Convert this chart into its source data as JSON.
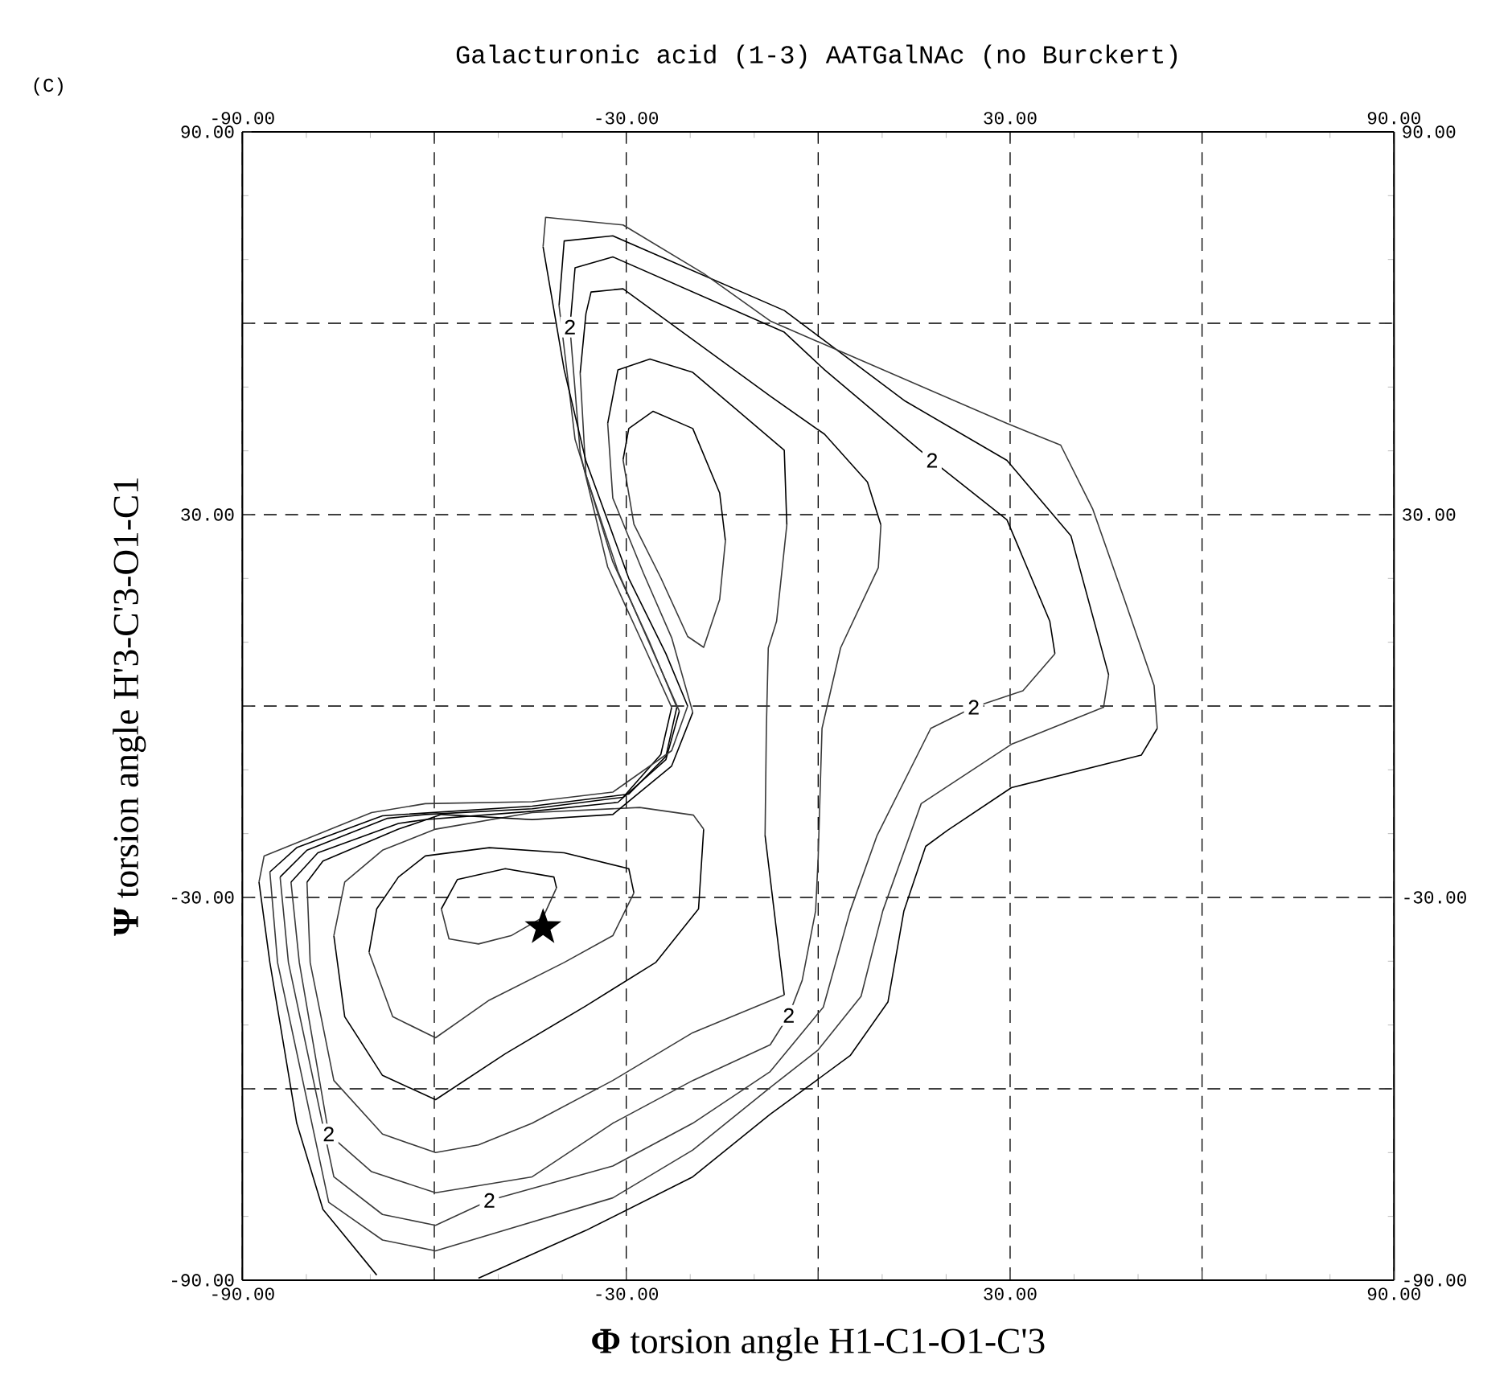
{
  "chart_data": {
    "type": "line",
    "title": "Galacturonic acid (1-3) AATGalNAc (no Burckert)",
    "xlabel": "**Φ** torsion angle H1-C1-O1-C'3",
    "ylabel": "**Ψ** torsion angle H'3-C'3-O1-C1",
    "xlim": [
      -90,
      90
    ],
    "ylim": [
      -90,
      90
    ],
    "x2lim": [
      -90,
      90
    ],
    "y2lim": [
      -90,
      90
    ],
    "xticks": [
      {
        "value": -90,
        "label": "-90.00"
      },
      {
        "value": -60,
        "label": null
      },
      {
        "value": -30,
        "label": "-30.00"
      },
      {
        "value": 0,
        "label": null
      },
      {
        "value": 30,
        "label": "30.00"
      },
      {
        "value": 60,
        "label": null
      },
      {
        "value": 90,
        "label": "90.00"
      }
    ],
    "yticks": [
      {
        "value": -90,
        "label": "-90.00"
      },
      {
        "value": -60,
        "label": null
      },
      {
        "value": -30,
        "label": "-30.00"
      },
      {
        "value": 0,
        "label": null
      },
      {
        "value": 30,
        "label": "30.00"
      },
      {
        "value": 60,
        "label": null
      },
      {
        "value": 90,
        "label": "90.00"
      }
    ],
    "x2ticks": [
      {
        "value": -90,
        "label": "-90.00"
      },
      {
        "value": -60,
        "label": null
      },
      {
        "value": -30,
        "label": "-30.00"
      },
      {
        "value": 0,
        "label": null
      },
      {
        "value": 30,
        "label": "30.00"
      },
      {
        "value": 60,
        "label": null
      },
      {
        "value": 90,
        "label": "90.00"
      }
    ],
    "y2ticks": [
      {
        "value": -90,
        "label": "-90.00"
      },
      {
        "value": -60,
        "label": null
      },
      {
        "value": -30,
        "label": "-30.00"
      },
      {
        "value": 0,
        "label": null
      },
      {
        "value": 30,
        "label": "30.00"
      },
      {
        "value": 60,
        "label": null
      },
      {
        "value": 90,
        "label": "90.00"
      }
    ],
    "grid": true,
    "marker": "none",
    "series": [
      {
        "color": "#000000",
        "x": [
          -40.9,
          -41.3,
          -48.9,
          -56.4,
          -58.9
        ],
        "values": [
          -28.5,
          -26.8,
          -25.5,
          -27.2,
          -31.8
        ]
      },
      {
        "color": "#3a3a3a",
        "x": [
          -58.9,
          -57.7,
          -53.1,
          -48.0,
          -43.0,
          -40.9
        ],
        "values": [
          -31.8,
          -36.5,
          -37.3,
          -36.0,
          -33.1,
          -28.5
        ]
      },
      {
        "color": "#000000",
        "x": [
          -70.2,
          -69.0,
          -65.6,
          -61.4,
          -51.4,
          -39.7,
          -29.6,
          -28.8
        ],
        "values": [
          -38.6,
          -31.8,
          -26.8,
          -23.5,
          -22.2,
          -23.0,
          -25.5,
          -29.3
        ]
      },
      {
        "color": "#3a3a3a",
        "x": [
          -28.8,
          -32.1,
          -39.7,
          -51.4,
          -59.8,
          -66.5,
          -70.2
        ],
        "values": [
          -29.3,
          -36.0,
          -40.2,
          -46.1,
          -52.0,
          -48.7,
          -38.6
        ]
      },
      {
        "color": "#000000",
        "x": [
          -17.9,
          -18.7,
          -25.4,
          -36.3,
          -48.9,
          -59.8,
          -68.1,
          -74.0,
          -75.7
        ],
        "values": [
          -19.3,
          -31.8,
          -40.2,
          -47.0,
          -54.5,
          -61.7,
          -57.9,
          -48.7,
          -36.0
        ]
      },
      {
        "color": "#3a3a3a",
        "x": [
          -75.7,
          -74.0,
          -68.1,
          -59.8,
          -44.7,
          -27.9,
          -19.5,
          -17.9
        ],
        "values": [
          -36.0,
          -27.6,
          -22.6,
          -19.3,
          -16.7,
          -15.9,
          -17.1,
          -19.3
        ]
      },
      {
        "color": "#000000",
        "x": [
          -30.5,
          -29.6,
          -25.8,
          -19.6,
          -15.4,
          -14.5
        ],
        "values": [
          38.6,
          43.5,
          46.2,
          43.5,
          33.4,
          25.9
        ]
      },
      {
        "color": "#3a3a3a",
        "x": [
          -14.5,
          -15.4,
          -17.9,
          -20.4,
          -24.6,
          -28.8,
          -30.5
        ],
        "values": [
          25.9,
          16.7,
          9.2,
          10.9,
          20.1,
          28.5,
          38.6
        ]
      },
      {
        "color": "#000000",
        "x": [
          -32.9,
          -31.3,
          -26.3,
          -19.6,
          -5.3,
          -4.9
        ],
        "values": [
          44.3,
          52.7,
          54.4,
          52.3,
          40.1,
          28.4
        ]
      },
      {
        "color": "#3a3a3a",
        "x": [
          -4.9,
          -6.5,
          -7.8,
          -8.1,
          -8.3
        ],
        "values": [
          28.4,
          13.3,
          9.1,
          -3.5,
          -20.3
        ]
      },
      {
        "color": "#000000",
        "x": [
          -8.3,
          -5.3
        ],
        "values": [
          -20.3,
          -45.3
        ]
      },
      {
        "color": "#3a3a3a",
        "x": [
          -5.3,
          -19.6,
          -32.1,
          -44.7,
          -53.1,
          -59.8,
          -68.1,
          -75.7,
          -79.4,
          -79.9
        ],
        "values": [
          -45.3,
          -51.2,
          -58.7,
          -65.4,
          -68.8,
          -70.0,
          -67.1,
          -58.7,
          -40.2,
          -27.6
        ]
      },
      {
        "color": "#000000",
        "x": [
          -79.9,
          -77.4,
          -65.6,
          -58.9,
          -44.7,
          -32.1,
          -22.9,
          -19.6
        ],
        "values": [
          -27.6,
          -24.3,
          -19.3,
          -17.0,
          -17.8,
          -17.0,
          -9.4,
          -1.0
        ]
      },
      {
        "color": "#3a3a3a",
        "x": [
          -19.6,
          -22.9,
          -27.3,
          -32.1,
          -32.9
        ],
        "values": [
          -1.0,
          10.7,
          20.8,
          32.6,
          44.3
        ]
      },
      {
        "color": "#000000",
        "x": [
          -37.2,
          -36.3,
          -35.5,
          -30.5,
          -7.4,
          1.0,
          7.7,
          9.8
        ],
        "values": [
          52.2,
          61.5,
          64.9,
          65.4,
          48.5,
          42.6,
          35.1,
          28.4
        ]
      },
      {
        "color": "#3a3a3a",
        "x": [
          9.8,
          9.4,
          3.5,
          0.6,
          0.0,
          -0.4,
          -2.5,
          -4.6,
          -7.5,
          -19.6,
          -32.1,
          -44.7,
          -59.8,
          -69.8,
          -76.5,
          -81.1,
          -82.4
        ],
        "values": [
          28.4,
          21.7,
          9.1,
          -3.5,
          -23.7,
          -32.1,
          -43.0,
          -48.5,
          -53.1,
          -58.7,
          -65.4,
          -73.8,
          -76.3,
          -73.0,
          -67.1,
          -40.2,
          -27.6
        ]
      },
      {
        "color": "#000000",
        "x": [
          -82.4,
          -78.2,
          -65.6,
          -61.4,
          -44.7,
          -31.3,
          -23.8,
          -21.7
        ],
        "values": [
          -27.6,
          -23.0,
          -18.4,
          -17.8,
          -16.5,
          -15.1,
          -8.4,
          -0.8
        ]
      },
      {
        "color": "#3a3a3a",
        "x": [
          -21.7,
          -25.8,
          -31.3,
          -36.3,
          -37.2
        ],
        "values": [
          -0.8,
          8.5,
          21.1,
          36.2,
          52.2
        ]
      },
      {
        "color": "#000000",
        "x": [
          -38.8,
          -38.0,
          -32.1,
          -5.3,
          1.0,
          17.8,
          29.5,
          36.2,
          37.0
        ],
        "values": [
          59.4,
          68.7,
          70.4,
          58.6,
          52.7,
          38.5,
          29.2,
          13.3,
          8.2
        ]
      },
      {
        "color": "#3a3a3a",
        "x": [
          37.0,
          32.0,
          24.3,
          17.6,
          9.2,
          5.0,
          0.8,
          -7.5,
          -19.6,
          -32.1,
          -51.4,
          -59.8,
          -68.1,
          -75.7,
          -82.8,
          -84.1
        ],
        "values": [
          8.2,
          2.4,
          -0.2,
          -3.5,
          -20.3,
          -32.1,
          -47.2,
          -57.3,
          -65.4,
          -72.1,
          -77.5,
          -81.4,
          -79.7,
          -73.8,
          -40.2,
          -26.8
        ]
      },
      {
        "color": "#000000",
        "x": [
          -84.1,
          -79.9,
          -67.3,
          -61.4,
          -44.7,
          -30.5,
          -24.6,
          -22.9
        ],
        "values": [
          -26.8,
          -22.6,
          -17.6,
          -17.0,
          -16.1,
          -14.3,
          -7.6,
          -0.2
        ]
      },
      {
        "color": "#3a3a3a",
        "x": [
          -22.9,
          -27.1,
          -32.9,
          -37.2,
          -38.8
        ],
        "values": [
          -0.2,
          9.1,
          21.8,
          39.7,
          59.4
        ]
      },
      {
        "color": "#000000",
        "x": [
          -40.5,
          -39.7,
          -32.1,
          -5.3,
          13.6,
          29.5,
          39.5,
          45.4
        ],
        "values": [
          62.8,
          72.9,
          73.7,
          62.0,
          47.8,
          38.5,
          26.7,
          4.9
        ]
      },
      {
        "color": "#3a3a3a",
        "x": [
          45.4,
          44.6,
          30.2,
          16.1,
          10.1,
          6.7,
          0.0,
          -7.5,
          -19.6,
          -32.1,
          -59.8,
          -68.1,
          -76.5,
          -84.5,
          -85.7
        ],
        "values": [
          4.9,
          -0.2,
          -6.0,
          -15.3,
          -32.1,
          -45.5,
          -53.9,
          -59.8,
          -69.6,
          -77.1,
          -85.4,
          -83.7,
          -77.8,
          -40.2,
          -26.0
        ]
      },
      {
        "color": "#000000",
        "x": [
          -85.7,
          -81.5,
          -68.1,
          -44.7,
          -29.6,
          -23.8,
          -22.1
        ],
        "values": [
          -26.0,
          -22.2,
          -17.2,
          -15.7,
          -13.8,
          -7.9,
          -0.2
        ]
      },
      {
        "color": "#3a3a3a",
        "x": [
          -22.1,
          -26.3,
          -32.1,
          -38.0,
          -40.5
        ],
        "values": [
          -0.2,
          9.9,
          22.6,
          41.8,
          62.8
        ]
      },
      {
        "color": "#000000",
        "x": [
          -69.0,
          -77.4,
          -81.5,
          -85.7,
          -87.4
        ],
        "values": [
          -89.2,
          -78.9,
          -65.4,
          -40.2,
          -27.6
        ]
      },
      {
        "color": "#3a3a3a",
        "x": [
          -87.4,
          -86.6,
          -82.4,
          -69.8,
          -61.4,
          -44.7,
          -32.1,
          -22.9,
          -20.4
        ],
        "values": [
          -27.6,
          -23.5,
          -21.8,
          -16.7,
          -15.3,
          -15.0,
          -13.5,
          -7.0,
          0.0
        ]
      },
      {
        "color": "#000000",
        "x": [
          -20.4,
          -23.8,
          -29.6,
          -36.3,
          -39.7,
          -43.0
        ],
        "values": [
          0.0,
          8.2,
          20.0,
          38.4,
          52.7,
          72.0
        ]
      },
      {
        "color": "#3a3a3a",
        "x": [
          -43.0,
          -42.6,
          -30.5,
          -17.9,
          -7.4,
          29.5,
          37.9,
          42.9,
          47.9,
          52.5,
          53.0
        ],
        "values": [
          72.0,
          76.6,
          75.4,
          67.8,
          60.3,
          44.3,
          40.9,
          30.9,
          16.6,
          3.2,
          -3.5
        ]
      },
      {
        "color": "#000000",
        "x": [
          53.0,
          50.5,
          30.2,
          20.2,
          16.8,
          13.4,
          10.9,
          5.0,
          -7.5,
          -19.6,
          -36.3,
          -53.1
        ],
        "values": [
          -3.5,
          -7.7,
          -12.8,
          -19.5,
          -22.0,
          -32.1,
          -46.4,
          -54.8,
          -64.0,
          -73.8,
          -82.2,
          -89.7
        ]
      },
      {
        "type": "scatter",
        "color": "#000000",
        "marker": "star",
        "x": [
          -43.0
        ],
        "values": [
          -34.7
        ]
      }
    ],
    "annotations": [
      "(C)",
      {
        "text": "2",
        "x": -38.8,
        "y": 59.4
      },
      {
        "text": "2",
        "x": 17.8,
        "y": 38.5
      },
      {
        "text": "2",
        "x": 24.3,
        "y": -0.2
      },
      {
        "text": "2",
        "x": -4.6,
        "y": -48.5
      },
      {
        "text": "2",
        "x": -51.4,
        "y": -77.5
      },
      {
        "text": "2",
        "x": -76.5,
        "y": -67.1
      }
    ]
  }
}
